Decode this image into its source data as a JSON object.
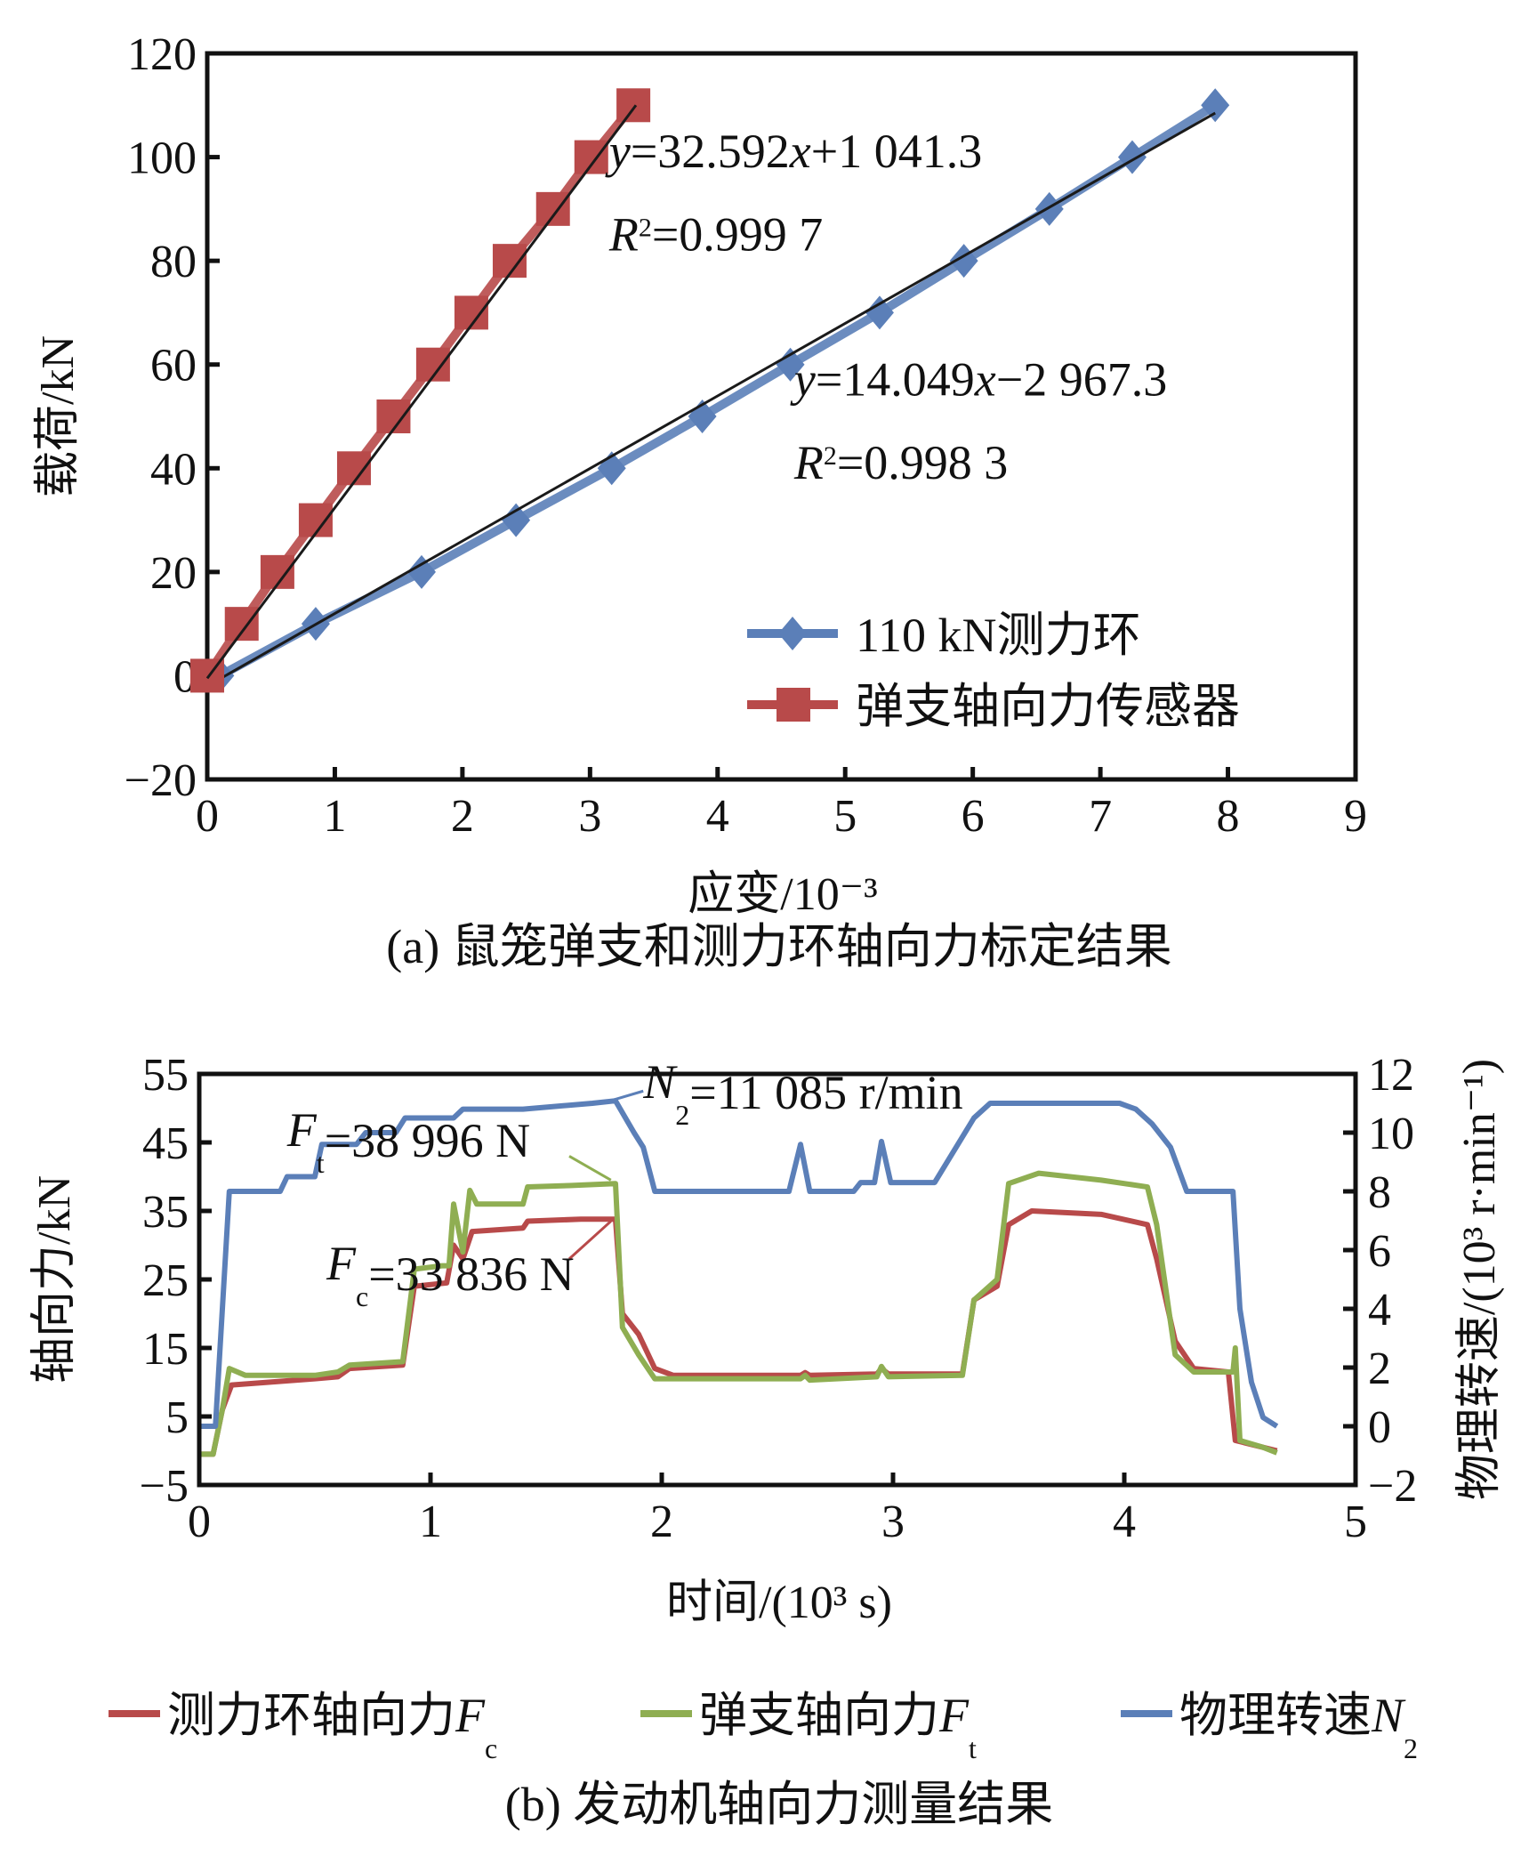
{
  "chart_data": [
    {
      "id": "a",
      "type": "scatter",
      "caption": "(a) 鼠笼弹支和测力环轴向力标定结果",
      "xlabel": "应变/10⁻³",
      "ylabel": "载荷/kN",
      "xlim": [
        0,
        9
      ],
      "ylim": [
        -20,
        120
      ],
      "xticks": [
        0,
        1,
        2,
        3,
        4,
        5,
        6,
        7,
        8,
        9
      ],
      "yticks": [
        -20,
        0,
        20,
        40,
        60,
        80,
        100,
        120
      ],
      "ytick_labels": [
        "−20",
        "0",
        "20",
        "40",
        "60",
        "80",
        "100",
        "120"
      ],
      "grid": false,
      "legend_position": "bottom-right",
      "series": [
        {
          "name": "110 kN测力环",
          "color": "#5b7fb8",
          "marker": "diamond",
          "x": [
            0.1,
            0.85,
            1.68,
            2.42,
            3.17,
            3.88,
            4.57,
            5.27,
            5.93,
            6.6,
            7.25,
            7.9
          ],
          "y": [
            0,
            10,
            20,
            30,
            40,
            50,
            60,
            70,
            80,
            90,
            100,
            110
          ],
          "fit": {
            "slope": 14.049,
            "x_range": [
              0,
              7.9
            ],
            "y_at_start": -2,
            "y_at_end": 108.5
          }
        },
        {
          "name": "弹支轴向力传感器",
          "color": "#b84a4a",
          "marker": "square",
          "x": [
            0,
            0.27,
            0.55,
            0.85,
            1.15,
            1.46,
            1.77,
            2.07,
            2.37,
            2.71,
            3.01,
            3.34
          ],
          "y": [
            0,
            10,
            20,
            30,
            40,
            50,
            60,
            70,
            80,
            90,
            100,
            110
          ],
          "fit": {
            "slope": 32.592,
            "x_range": [
              0,
              3.36
            ],
            "y_at_start": -0.5,
            "y_at_end": 110
          }
        }
      ],
      "annotations": [
        {
          "text_parts": [
            [
              "y",
              "i"
            ],
            [
              "=32.592",
              ""
            ],
            [
              "x",
              "i"
            ],
            [
              "+1 041.3",
              ""
            ]
          ],
          "at": [
            3.15,
            98
          ]
        },
        {
          "text_parts": [
            [
              "R",
              "i"
            ],
            [
              "2",
              "sup"
            ],
            [
              "=0.999 7",
              ""
            ]
          ],
          "at": [
            3.15,
            82
          ]
        },
        {
          "text_parts": [
            [
              "y",
              "i"
            ],
            [
              "=14.049",
              ""
            ],
            [
              "x",
              "i"
            ],
            [
              "−2 967.3",
              ""
            ]
          ],
          "at": [
            4.6,
            54
          ]
        },
        {
          "text_parts": [
            [
              "R",
              "i"
            ],
            [
              "2",
              "sup"
            ],
            [
              "=0.998 3",
              ""
            ]
          ],
          "at": [
            4.6,
            38
          ]
        }
      ]
    },
    {
      "id": "b",
      "type": "line",
      "caption": "(b) 发动机轴向力测量结果",
      "xlabel": "时间/(10³ s)",
      "ylabel_left": "轴向力/kN",
      "ylabel_right": "物理转速/(10³ r·min⁻¹)",
      "xlim": [
        0,
        5
      ],
      "ylim_left": [
        -5,
        55
      ],
      "ylim_right": [
        -2,
        12
      ],
      "xticks": [
        0,
        1,
        2,
        3,
        4,
        5
      ],
      "yticks_left": [
        -5,
        5,
        15,
        25,
        35,
        45,
        55
      ],
      "ytick_labels_left": [
        "−5",
        "5",
        "15",
        "25",
        "35",
        "45",
        "55"
      ],
      "yticks_right": [
        -2,
        0,
        2,
        4,
        6,
        8,
        10,
        12
      ],
      "ytick_labels_right": [
        "−2",
        "0",
        "2",
        "4",
        "6",
        "8",
        "10",
        "12"
      ],
      "grid": false,
      "legend_position": "bottom",
      "series": [
        {
          "name": "测力环轴向力",
          "sub": "c",
          "var": "F",
          "color": "#b84a4a",
          "axis": "left",
          "x": [
            0,
            0.06,
            0.1,
            0.14,
            0.5,
            0.6,
            0.65,
            0.88,
            0.93,
            1.07,
            1.1,
            1.14,
            1.18,
            1.4,
            1.42,
            1.65,
            1.8,
            1.83,
            1.9,
            1.97,
            2.05,
            2.6,
            2.62,
            2.64,
            2.93,
            2.95,
            2.98,
            3.3,
            3.35,
            3.45,
            3.5,
            3.6,
            3.9,
            4.1,
            4.14,
            4.22,
            4.3,
            4.45,
            4.48,
            4.6,
            4.66
          ],
          "y": [
            -0.5,
            -0.5,
            6,
            9.6,
            10.5,
            10.8,
            12,
            12.5,
            24,
            24.5,
            30,
            28,
            32,
            32.5,
            33.5,
            33.8,
            33.8,
            20,
            17,
            12,
            11,
            11,
            11.4,
            11,
            11.2,
            12,
            11.2,
            11.2,
            22,
            24,
            33,
            35,
            34.5,
            33,
            28,
            16,
            12,
            11.5,
            1.5,
            0.5,
            0
          ]
        },
        {
          "name": "弹支轴向力",
          "sub": "t",
          "var": "F",
          "color": "#8fae52",
          "axis": "left",
          "x": [
            0,
            0.06,
            0.1,
            0.13,
            0.2,
            0.5,
            0.6,
            0.65,
            0.88,
            0.93,
            1.05,
            1.08,
            1.1,
            1.14,
            1.17,
            1.2,
            1.4,
            1.42,
            1.6,
            1.8,
            1.83,
            1.9,
            1.97,
            2.6,
            2.62,
            2.64,
            2.93,
            2.95,
            2.98,
            3.3,
            3.35,
            3.45,
            3.5,
            3.63,
            3.9,
            4.1,
            4.14,
            4.22,
            4.3,
            4.47,
            4.48,
            4.5,
            4.6,
            4.66
          ],
          "y": [
            -0.5,
            -0.5,
            6,
            12,
            11,
            11,
            11.5,
            12.5,
            13,
            26.5,
            27,
            27,
            36,
            29,
            38,
            36,
            36,
            38.5,
            38.7,
            38.996,
            18,
            14,
            10.5,
            10.5,
            11,
            10.3,
            10.8,
            12.3,
            10.8,
            11,
            22,
            25,
            39,
            40.5,
            39.5,
            38.5,
            33,
            14,
            11.5,
            11.5,
            15,
            1.5,
            0.5,
            -0.3
          ]
        },
        {
          "name": "物理转速",
          "sub": "2",
          "var": "N",
          "color": "#5b7fb8",
          "axis": "right",
          "x": [
            0,
            0.07,
            0.13,
            0.35,
            0.38,
            0.5,
            0.53,
            0.68,
            0.72,
            0.85,
            0.89,
            1.1,
            1.14,
            1.4,
            1.7,
            1.8,
            1.88,
            1.92,
            1.97,
            2.55,
            2.6,
            2.64,
            2.83,
            2.86,
            2.92,
            2.95,
            2.99,
            3.18,
            3.35,
            3.42,
            3.98,
            4.05,
            4.12,
            4.2,
            4.27,
            4.47,
            4.5,
            4.55,
            4.6,
            4.66
          ],
          "y": [
            0,
            0,
            8,
            8,
            8.5,
            8.5,
            9.6,
            9.6,
            10,
            10,
            10.5,
            10.5,
            10.8,
            10.8,
            11,
            11.085,
            10,
            9.5,
            8,
            8,
            9.6,
            8,
            8,
            8.3,
            8.3,
            9.7,
            8.3,
            8.3,
            10.5,
            11,
            11,
            10.8,
            10.3,
            9.5,
            8,
            8,
            4,
            1.5,
            0.3,
            0
          ]
        }
      ],
      "annotations": [
        {
          "parts": [
            [
              "F",
              "i"
            ],
            [
              "t",
              "sub"
            ],
            [
              "=38 996 N",
              ""
            ]
          ],
          "at": [
            0.38,
            44.5
          ],
          "leader": {
            "from": [
              1.6,
              43
            ],
            "to": [
              1.78,
              39.5
            ],
            "color": "#8fae52"
          }
        },
        {
          "parts": [
            [
              "F",
              "i"
            ],
            [
              "c",
              "sub"
            ],
            [
              "=33 836 N",
              ""
            ]
          ],
          "at": [
            0.55,
            25
          ],
          "leader": {
            "from": [
              1.6,
              28
            ],
            "to": [
              1.78,
              33.5
            ],
            "color": "#b84a4a"
          }
        },
        {
          "parts": [
            [
              "N",
              "i"
            ],
            [
              "2",
              "sub"
            ],
            [
              "=11 085 r/min",
              ""
            ]
          ],
          "at": [
            1.92,
            51.5
          ],
          "leader": {
            "from": [
              1.75,
              50.8
            ],
            "to": [
              1.92,
              52.5
            ],
            "color": "#5b7fb8"
          }
        }
      ]
    }
  ]
}
